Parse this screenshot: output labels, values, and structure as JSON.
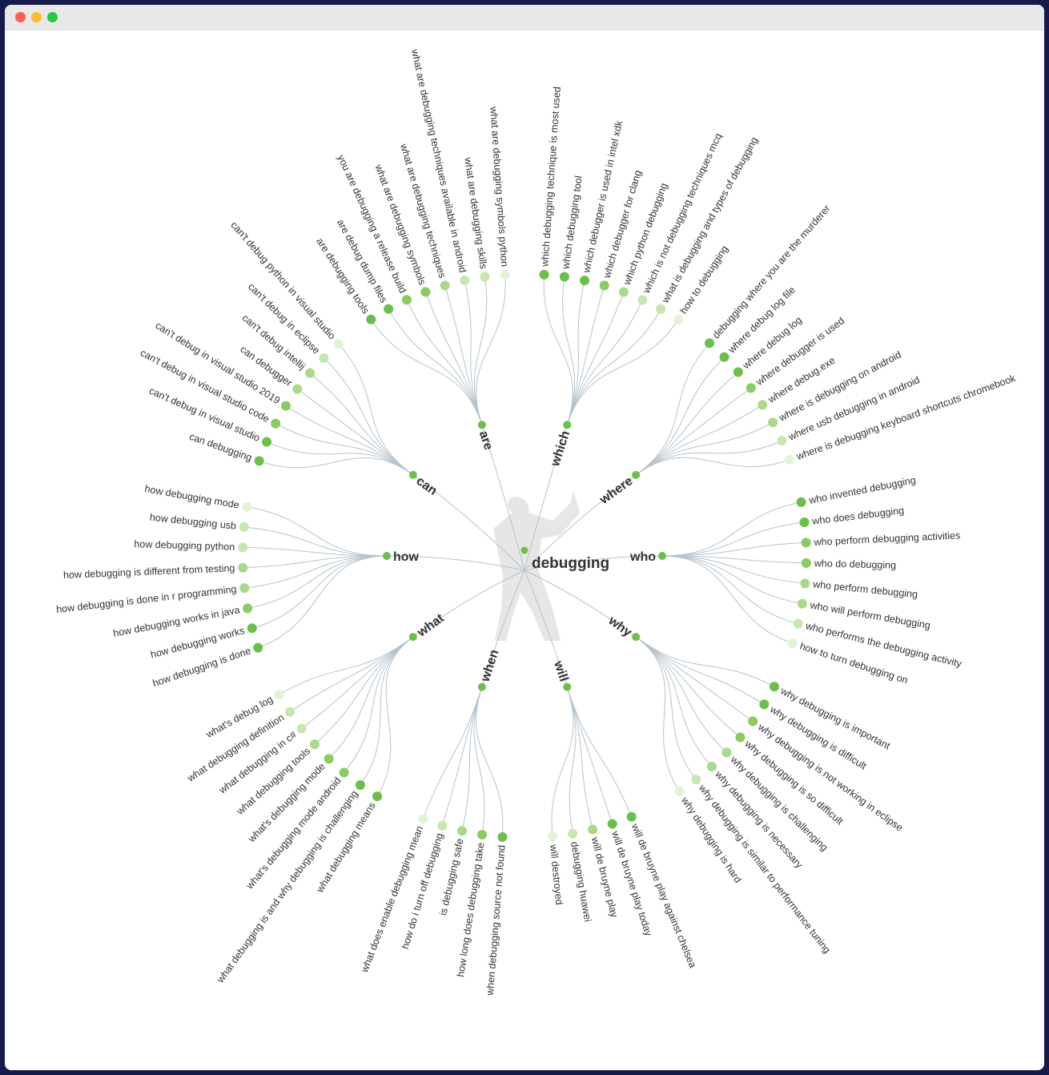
{
  "root": {
    "label": "debugging",
    "color": "#6cc04a"
  },
  "shades": [
    "#6cc04a",
    "#8acb62",
    "#a8da8a",
    "#c6e7b0",
    "#e4f3d8"
  ],
  "branches": [
    {
      "label": "who",
      "leaves": [
        {
          "text": "who invented debugging",
          "level": 0
        },
        {
          "text": "who does debugging",
          "level": 0
        },
        {
          "text": "who perform debugging activities",
          "level": 1
        },
        {
          "text": "who do debugging",
          "level": 1
        },
        {
          "text": "who perform debugging",
          "level": 2
        },
        {
          "text": "who will perform debugging",
          "level": 2
        },
        {
          "text": "who performs the debugging activity",
          "level": 3
        },
        {
          "text": "how to turn debugging on",
          "level": 4
        }
      ]
    },
    {
      "label": "why",
      "leaves": [
        {
          "text": "why debugging is important",
          "level": 0
        },
        {
          "text": "why debugging is difficult",
          "level": 0
        },
        {
          "text": "why debugging is not working in eclipse",
          "level": 1
        },
        {
          "text": "why debugging is so difficult",
          "level": 1
        },
        {
          "text": "why debugging is challenging",
          "level": 2
        },
        {
          "text": "why debugging is necessary",
          "level": 2
        },
        {
          "text": "why debugging is similar to performance tuning",
          "level": 3
        },
        {
          "text": "why debugging is hard",
          "level": 4
        }
      ]
    },
    {
      "label": "will",
      "leaves": [
        {
          "text": "will de bruyne play against chelsea",
          "level": 0
        },
        {
          "text": "will de bruyne play today",
          "level": 0
        },
        {
          "text": "will de bruyne play",
          "level": 2
        },
        {
          "text": "debugging huawei",
          "level": 3
        },
        {
          "text": "will destroyed",
          "level": 4
        }
      ]
    },
    {
      "label": "when",
      "leaves": [
        {
          "text": "when debugging source not found",
          "level": 0
        },
        {
          "text": "how long does debugging take",
          "level": 1
        },
        {
          "text": "is debugging safe",
          "level": 2
        },
        {
          "text": "how do i turn off debugging",
          "level": 3
        },
        {
          "text": "what does enable debugging mean",
          "level": 4
        }
      ]
    },
    {
      "label": "what",
      "leaves": [
        {
          "text": "what debugging means",
          "level": 0
        },
        {
          "text": "what debugging is and why debugging is challenging",
          "level": 0
        },
        {
          "text": "what's debugging mode android",
          "level": 1
        },
        {
          "text": "what's debugging mode",
          "level": 1
        },
        {
          "text": "what debugging tools",
          "level": 2
        },
        {
          "text": "what debugging in c#",
          "level": 3
        },
        {
          "text": "what debugging definition",
          "level": 3
        },
        {
          "text": "what's debug log",
          "level": 4
        }
      ]
    },
    {
      "label": "how",
      "leaves": [
        {
          "text": "how debugging is done",
          "level": 0
        },
        {
          "text": "how debugging works",
          "level": 0
        },
        {
          "text": "how debugging works in java",
          "level": 1
        },
        {
          "text": "how debugging is done in r programming",
          "level": 2
        },
        {
          "text": "how debugging is different from testing",
          "level": 2
        },
        {
          "text": "how debugging python",
          "level": 3
        },
        {
          "text": "how debugging usb",
          "level": 3
        },
        {
          "text": "how debugging mode",
          "level": 4
        }
      ]
    },
    {
      "label": "can",
      "leaves": [
        {
          "text": "can debugging",
          "level": 0
        },
        {
          "text": "can't debug in visual studio",
          "level": 0
        },
        {
          "text": "can't debug in visual studio code",
          "level": 1
        },
        {
          "text": "can't debug in visual studio 2019",
          "level": 1
        },
        {
          "text": "can debugger",
          "level": 2
        },
        {
          "text": "can't debug intellij",
          "level": 2
        },
        {
          "text": "can't debug in eclipse",
          "level": 3
        },
        {
          "text": "can't debug python in visual studio",
          "level": 4
        }
      ]
    },
    {
      "label": "are",
      "leaves": [
        {
          "text": "are debugging tools",
          "level": 0
        },
        {
          "text": "are debug dump files",
          "level": 0
        },
        {
          "text": "you are debugging a release build",
          "level": 1
        },
        {
          "text": "what are debugging symbols",
          "level": 1
        },
        {
          "text": "what are debugging techniques",
          "level": 2
        },
        {
          "text": "what are debugging techniques available in android",
          "level": 3
        },
        {
          "text": "what are debugging skills",
          "level": 3
        },
        {
          "text": "what are debugging symbols python",
          "level": 4
        }
      ]
    },
    {
      "label": "which",
      "leaves": [
        {
          "text": "which debugging technique is most used",
          "level": 0
        },
        {
          "text": "which debugging tool",
          "level": 0
        },
        {
          "text": "which debugger is used in intel xdk",
          "level": 0
        },
        {
          "text": "which debugger for clang",
          "level": 1
        },
        {
          "text": "which python debugging",
          "level": 2
        },
        {
          "text": "which is not debugging techniques mcq",
          "level": 3
        },
        {
          "text": "what is debugging and types of debugging",
          "level": 3
        },
        {
          "text": "how to debugging",
          "level": 4
        }
      ]
    },
    {
      "label": "where",
      "leaves": [
        {
          "text": "debugging where you are the murderer",
          "level": 0
        },
        {
          "text": "where debug log file",
          "level": 0
        },
        {
          "text": "where debug log",
          "level": 0
        },
        {
          "text": "where debugger is used",
          "level": 1
        },
        {
          "text": "where debug.exe",
          "level": 2
        },
        {
          "text": "where is debugging on android",
          "level": 2
        },
        {
          "text": "where usb debugging in android",
          "level": 3
        },
        {
          "text": "where is debugging keyboard shortcuts chromebook",
          "level": 4
        }
      ]
    }
  ]
}
